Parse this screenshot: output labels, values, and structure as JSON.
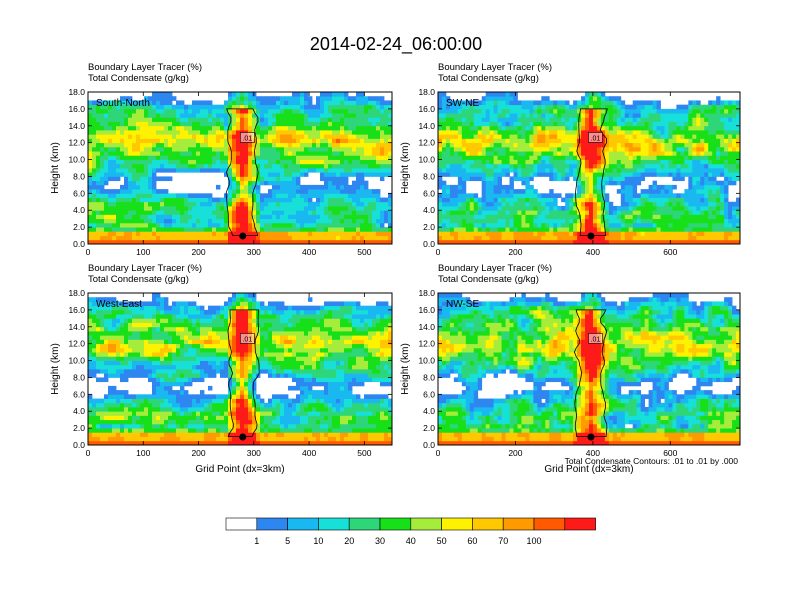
{
  "page": {
    "title": "2014-02-24_06:00:00",
    "colors": {
      "background": "#ffffff",
      "text": "#000000"
    }
  },
  "chart_data": [
    {
      "type": "heatmap",
      "panel_label": "South-North",
      "title_lines": [
        "Boundary Layer Tracer   (%)",
        "Total Condensate   (g/kg)"
      ],
      "ylabel": "Height (km)",
      "xlabel": "",
      "xlim": [
        0,
        550
      ],
      "ylim": [
        0,
        18
      ],
      "xticks": [
        0,
        100,
        200,
        300,
        400,
        500
      ],
      "yticks": [
        0,
        2,
        4,
        6,
        8,
        10,
        12,
        14,
        16,
        18
      ],
      "yticklabels": [
        "0.0",
        "2.0",
        "4.0",
        "6.0",
        "8.0",
        "10.0",
        "12.0",
        "14.0",
        "16.0",
        "18.0"
      ],
      "contour_labels": [
        ".01"
      ],
      "marker_x": 280
    },
    {
      "type": "heatmap",
      "panel_label": "SW-NE",
      "title_lines": [
        "Boundary Layer Tracer   (%)",
        "Total Condensate   (g/kg)"
      ],
      "ylabel": "Height (km)",
      "xlabel": "",
      "xlim": [
        0,
        780
      ],
      "ylim": [
        0,
        18
      ],
      "xticks": [
        0,
        200,
        400,
        600
      ],
      "yticks": [
        0,
        2,
        4,
        6,
        8,
        10,
        12,
        14,
        16,
        18
      ],
      "yticklabels": [
        "0.0",
        "2.0",
        "4.0",
        "6.0",
        "8.0",
        "10.0",
        "12.0",
        "14.0",
        "16.0",
        "18.0"
      ],
      "contour_labels": [
        ".01"
      ],
      "marker_x": 395
    },
    {
      "type": "heatmap",
      "panel_label": "West-East",
      "title_lines": [
        "Boundary Layer Tracer   (%)",
        "Total Condensate   (g/kg)"
      ],
      "ylabel": "Height (km)",
      "xlabel": "Grid Point (dx=3km)",
      "xlim": [
        0,
        550
      ],
      "ylim": [
        0,
        18
      ],
      "xticks": [
        0,
        100,
        200,
        300,
        400,
        500
      ],
      "yticks": [
        0,
        2,
        4,
        6,
        8,
        10,
        12,
        14,
        16,
        18
      ],
      "yticklabels": [
        "0.0",
        "2.0",
        "4.0",
        "6.0",
        "8.0",
        "10.0",
        "12.0",
        "14.0",
        "16.0",
        "18.0"
      ],
      "contour_labels": [
        ".01"
      ],
      "marker_x": 280
    },
    {
      "type": "heatmap",
      "panel_label": "NW-SE",
      "title_lines": [
        "Boundary Layer Tracer   (%)",
        "Total Condensate   (g/kg)"
      ],
      "ylabel": "Height (km)",
      "xlabel": "Grid Point (dx=3km)",
      "xlim": [
        0,
        780
      ],
      "ylim": [
        0,
        18
      ],
      "xticks": [
        0,
        200,
        400,
        600
      ],
      "yticks": [
        0,
        2,
        4,
        6,
        8,
        10,
        12,
        14,
        16,
        18
      ],
      "yticklabels": [
        "0.0",
        "2.0",
        "4.0",
        "6.0",
        "8.0",
        "10.0",
        "12.0",
        "14.0",
        "16.0",
        "18.0"
      ],
      "contour_labels": [
        ".01"
      ],
      "marker_x": 395
    }
  ],
  "contour_note": "Total Condensate Contours: .01 to .01 by .000",
  "colorbar": {
    "levels": [
      "1",
      "5",
      "10",
      "20",
      "30",
      "40",
      "50",
      "60",
      "70",
      "100"
    ],
    "colors": [
      "#ffffff",
      "#2e86f0",
      "#1ab8f0",
      "#16e0d8",
      "#2ed67a",
      "#18e018",
      "#a6ec3a",
      "#fff200",
      "#ffc800",
      "#ff9a00",
      "#ff5a00",
      "#ff1a1a"
    ]
  }
}
